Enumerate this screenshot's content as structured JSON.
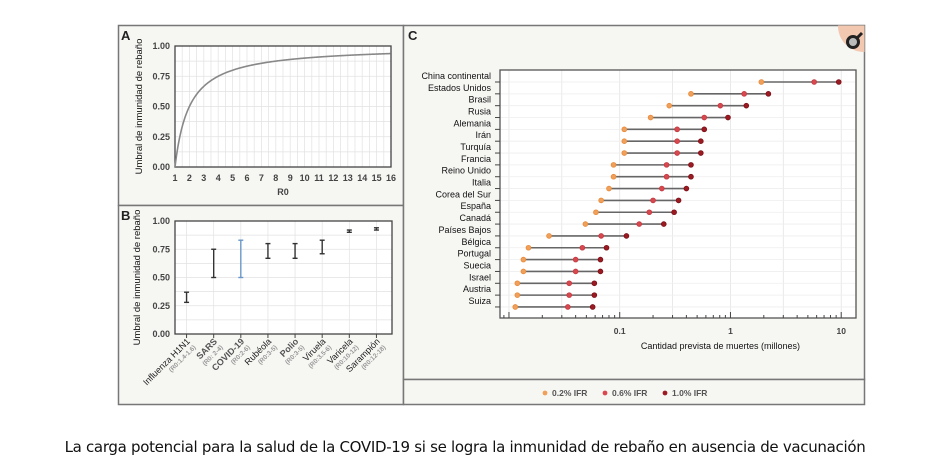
{
  "caption": "La carga potencial para la salud de la COVID-19 si se logra la inmunidad de rebaño en ausencia de vacunación",
  "zoom_icon": "magnifier-icon",
  "colors": {
    "ifr02": "#f0a05a",
    "ifr06": "#d9474f",
    "ifr10": "#9c1a22",
    "covid": "#6a97c9",
    "errbar": "#333333",
    "curve": "#888888"
  },
  "chart_data": [
    {
      "panel": "A",
      "type": "line",
      "xlabel": "R0",
      "ylabel": "Umbral de inmunidad de rebaño",
      "xlim": [
        1,
        16
      ],
      "ylim": [
        0,
        1
      ],
      "xticks": [
        "1",
        "2",
        "3",
        "4",
        "5",
        "6",
        "7",
        "8",
        "9",
        "10",
        "11",
        "12",
        "13",
        "14",
        "15",
        "16"
      ],
      "yticks": [
        "0.00",
        "0.25",
        "0.50",
        "0.75",
        "1.00"
      ],
      "grid": true,
      "function": "1 - 1/R0"
    },
    {
      "panel": "B",
      "type": "errorbar",
      "ylabel": "Umbral de inmunidad de rebaño",
      "ylim": [
        0,
        1
      ],
      "yticks": [
        "0.00",
        "0.25",
        "0.50",
        "0.75",
        "1.00"
      ],
      "grid": true,
      "categories": [
        {
          "name": "Influenza H1N1",
          "r0": "(R0:1.4-1.6)",
          "low": 0.28,
          "high": 0.37,
          "bold": false
        },
        {
          "name": "SARS",
          "r0": "(R0: 2-4)",
          "low": 0.5,
          "high": 0.75,
          "bold": true
        },
        {
          "name": "COVID-19",
          "r0": "(R0:2-6)",
          "low": 0.5,
          "high": 0.83,
          "bold": true,
          "highlight": true
        },
        {
          "name": "Rubéola",
          "r0": "(R0:3-5)",
          "low": 0.67,
          "high": 0.8,
          "bold": false
        },
        {
          "name": "Polio",
          "r0": "(R0:3-5)",
          "low": 0.67,
          "high": 0.8,
          "bold": true
        },
        {
          "name": "Viruela",
          "r0": "(R0:3.5-6)",
          "low": 0.71,
          "high": 0.83,
          "bold": false
        },
        {
          "name": "Varicela",
          "r0": "(R0:10-12)",
          "low": 0.9,
          "high": 0.92,
          "bold": false
        },
        {
          "name": "Sarampión",
          "r0": "(R0:12-18)",
          "low": 0.92,
          "high": 0.94,
          "bold": false
        }
      ]
    },
    {
      "panel": "C",
      "type": "dot-range",
      "xlabel": "Cantidad prevista de muertes (millones)",
      "xscale": "log",
      "xlim": [
        0.0083,
        13.6
      ],
      "xticks": [
        "0.1",
        "1",
        "10"
      ],
      "grid": true,
      "legend_position": "bottom",
      "series": [
        {
          "name": "0.2% IFR"
        },
        {
          "name": "0.6% IFR"
        },
        {
          "name": "1.0% IFR"
        }
      ],
      "rows": [
        {
          "country": "China continental",
          "values": [
            1.9,
            5.7,
            9.5
          ]
        },
        {
          "country": "Estados Unidos",
          "values": [
            0.44,
            1.33,
            2.2
          ]
        },
        {
          "country": "Brasil",
          "values": [
            0.28,
            0.81,
            1.39
          ]
        },
        {
          "country": "Rusia",
          "values": [
            0.19,
            0.58,
            0.95
          ]
        },
        {
          "country": "Alemania",
          "values": [
            0.11,
            0.33,
            0.58
          ]
        },
        {
          "country": "Irán",
          "values": [
            0.11,
            0.33,
            0.54
          ]
        },
        {
          "country": "Turquía",
          "values": [
            0.11,
            0.33,
            0.54
          ]
        },
        {
          "country": "Francia",
          "values": [
            0.088,
            0.265,
            0.44
          ]
        },
        {
          "country": "Reino Unido",
          "values": [
            0.088,
            0.265,
            0.44
          ]
        },
        {
          "country": "Italia",
          "values": [
            0.08,
            0.24,
            0.4
          ]
        },
        {
          "country": "Corea del Sur",
          "values": [
            0.068,
            0.2,
            0.34
          ]
        },
        {
          "country": "España",
          "values": [
            0.061,
            0.185,
            0.31
          ]
        },
        {
          "country": "Canadá",
          "values": [
            0.049,
            0.15,
            0.25
          ]
        },
        {
          "country": "Países Bajos",
          "values": [
            0.023,
            0.068,
            0.115
          ]
        },
        {
          "country": "Bélgica",
          "values": [
            0.015,
            0.046,
            0.076
          ]
        },
        {
          "country": "Portugal",
          "values": [
            0.0135,
            0.04,
            0.067
          ]
        },
        {
          "country": "Suecia",
          "values": [
            0.0135,
            0.04,
            0.067
          ]
        },
        {
          "country": "Israel",
          "values": [
            0.0119,
            0.035,
            0.059
          ]
        },
        {
          "country": "Austria",
          "values": [
            0.0119,
            0.035,
            0.059
          ]
        },
        {
          "country": "Suiza",
          "values": [
            0.0114,
            0.034,
            0.057
          ]
        }
      ]
    }
  ]
}
